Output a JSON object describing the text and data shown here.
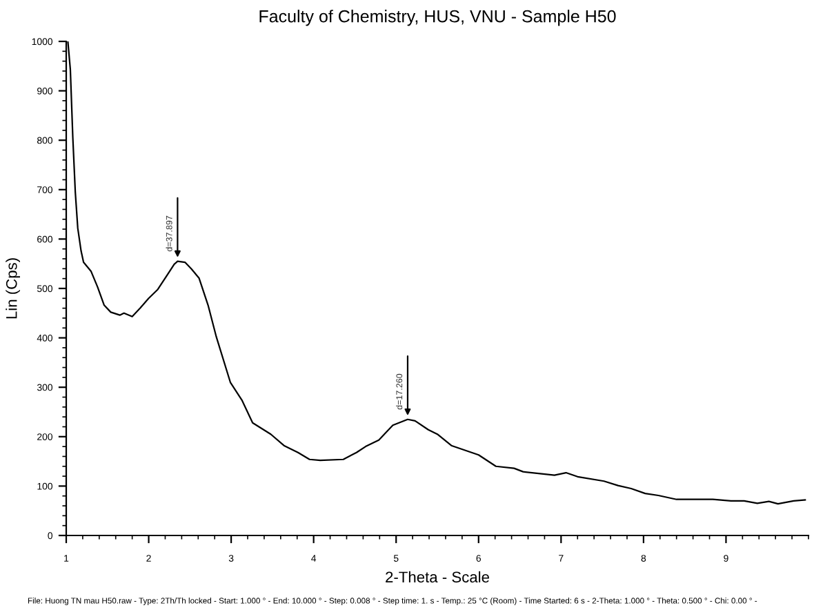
{
  "chart_data": {
    "type": "line",
    "title": "Faculty of Chemistry, HUS, VNU - Sample H50",
    "xlabel": "2-Theta - Scale",
    "ylabel": "Lin (Cps)",
    "series": [
      {
        "color": "#000000",
        "x": [
          1.02,
          1.05,
          1.08,
          1.11,
          1.14,
          1.18,
          1.21,
          1.3,
          1.38,
          1.46,
          1.54,
          1.65,
          1.7,
          1.8,
          1.9,
          2.0,
          2.11,
          2.22,
          2.31,
          2.35,
          2.44,
          2.52,
          2.61,
          2.72,
          2.82,
          2.99,
          3.13,
          3.26,
          3.48,
          3.64,
          3.81,
          3.95,
          4.08,
          4.36,
          4.52,
          4.63,
          4.79,
          4.96,
          5.14,
          5.23,
          5.39,
          5.5,
          5.67,
          6.0,
          6.21,
          6.43,
          6.54,
          6.92,
          7.06,
          7.2,
          7.52,
          7.69,
          7.85,
          8.02,
          8.18,
          8.4,
          8.84,
          9.06,
          9.22,
          9.38,
          9.52,
          9.63,
          9.82,
          9.96
        ],
        "values": [
          1000,
          943,
          805,
          695,
          622,
          576,
          553,
          535,
          503,
          466,
          452,
          446,
          450,
          443,
          461,
          480,
          498,
          526,
          549,
          555,
          553,
          539,
          521,
          466,
          402,
          310,
          274,
          228,
          205,
          182,
          168,
          154,
          152,
          154,
          168,
          180,
          193,
          223,
          235,
          232,
          214,
          205,
          182,
          163,
          140,
          136,
          129,
          122,
          127,
          119,
          110,
          101,
          95,
          85,
          81,
          73,
          73,
          70,
          70,
          65,
          69,
          64,
          70,
          72
        ]
      }
    ],
    "xlim": [
      1,
      10
    ],
    "ylim": [
      0,
      1000
    ],
    "xticks": [
      1,
      2,
      3,
      4,
      5,
      6,
      7,
      8,
      9
    ],
    "yticks": [
      0,
      100,
      200,
      300,
      400,
      500,
      600,
      700,
      800,
      900,
      1000
    ],
    "grid": false,
    "marker": "none",
    "line_style": "solid",
    "annotations": [
      {
        "text": "d=37.897",
        "x": 2.35,
        "y": 555
      },
      {
        "text": "d=17.260",
        "x": 5.14,
        "y": 235
      },
      "File: Huong TN mau H50.raw - Type: 2Th/Th locked - Start: 1.000 ° - End: 10.000 ° - Step: 0.008 ° - Step time: 1. s - Temp.: 25 °C (Room) - Time Started: 6 s - 2-Theta: 1.000 ° - Theta: 0.500 ° - Chi: 0.00 ° -"
    ]
  }
}
